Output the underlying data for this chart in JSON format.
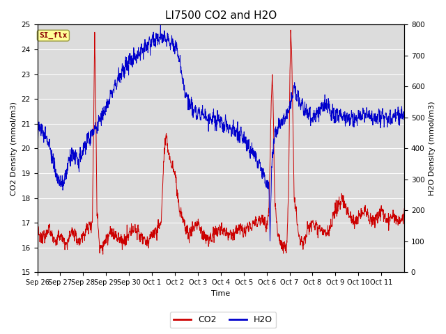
{
  "title": "LI7500 CO2 and H2O",
  "xlabel": "Time",
  "ylabel_left": "CO2 Density (mmol/m3)",
  "ylabel_right": "H2O Density (mmol/m3)",
  "ylim_left": [
    15.0,
    25.0
  ],
  "ylim_right": [
    0,
    800
  ],
  "yticks_left": [
    15.0,
    16.0,
    17.0,
    18.0,
    19.0,
    20.0,
    21.0,
    22.0,
    23.0,
    24.0,
    25.0
  ],
  "yticks_right": [
    0,
    100,
    200,
    300,
    400,
    500,
    600,
    700,
    800
  ],
  "xtick_labels": [
    "Sep 26",
    "Sep 27",
    "Sep 28",
    "Sep 29",
    "Sep 30",
    "Oct 1",
    "Oct 2",
    "Oct 3",
    "Oct 4",
    "Oct 5",
    "Oct 6",
    "Oct 7",
    "Oct 8",
    "Oct 9",
    "Oct 10",
    "Oct 11"
  ],
  "co2_color": "#cc0000",
  "h2o_color": "#0000cc",
  "background_color": "#dcdcdc",
  "annotation_text": "SI_flx",
  "annotation_bg": "#ffff99",
  "annotation_border": "#999944",
  "legend_co2": "CO2",
  "legend_h2o": "H2O",
  "title_fontsize": 11,
  "axis_fontsize": 8,
  "tick_fontsize": 7.5,
  "line_width": 0.7
}
